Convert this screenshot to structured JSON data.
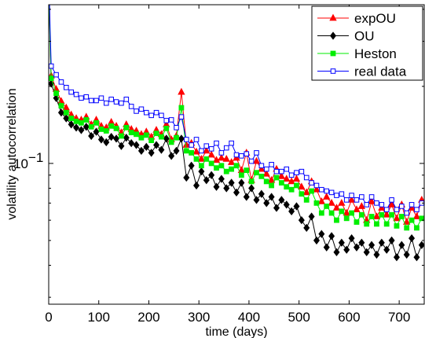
{
  "chart_data": {
    "type": "line",
    "title": "",
    "xlabel": "time (days)",
    "ylabel": "volatility autocorrelation",
    "xlim": [
      0,
      750
    ],
    "ylim_log10": [
      -1.55,
      -0.38
    ],
    "yscale": "log",
    "grid": false,
    "legend_position": "top-right",
    "x_ticks": [
      {
        "value": 0,
        "label": "0"
      },
      {
        "value": 100,
        "label": "100"
      },
      {
        "value": 200,
        "label": "200"
      },
      {
        "value": 300,
        "label": "300"
      },
      {
        "value": 400,
        "label": "400"
      },
      {
        "value": 500,
        "label": "500"
      },
      {
        "value": 600,
        "label": "600"
      },
      {
        "value": 700,
        "label": "700"
      }
    ],
    "y_ticks": [
      {
        "value": 0.1,
        "label_base": "10",
        "label_exp": "−1"
      }
    ],
    "x": [
      5,
      15,
      25,
      35,
      45,
      55,
      65,
      75,
      85,
      95,
      105,
      115,
      125,
      135,
      145,
      155,
      165,
      175,
      185,
      195,
      205,
      215,
      225,
      235,
      245,
      255,
      265,
      275,
      285,
      295,
      305,
      315,
      325,
      335,
      345,
      355,
      365,
      375,
      385,
      395,
      405,
      415,
      425,
      435,
      445,
      455,
      465,
      475,
      485,
      495,
      505,
      515,
      525,
      535,
      545,
      555,
      565,
      575,
      585,
      595,
      605,
      615,
      625,
      635,
      645,
      655,
      665,
      675,
      685,
      695,
      705,
      715,
      725,
      735,
      745
    ],
    "series": [
      {
        "name": "expOU",
        "color": "#ff0000",
        "marker": "triangle",
        "values": [
          0.22,
          0.195,
          0.175,
          0.165,
          0.155,
          0.15,
          0.148,
          0.152,
          0.142,
          0.148,
          0.14,
          0.138,
          0.145,
          0.14,
          0.132,
          0.142,
          0.136,
          0.134,
          0.13,
          0.133,
          0.127,
          0.135,
          0.13,
          0.142,
          0.124,
          0.128,
          0.19,
          0.118,
          0.12,
          0.111,
          0.104,
          0.112,
          0.108,
          0.103,
          0.105,
          0.104,
          0.101,
          0.105,
          0.094,
          0.11,
          0.086,
          0.102,
          0.095,
          0.091,
          0.086,
          0.095,
          0.089,
          0.087,
          0.085,
          0.087,
          0.081,
          0.077,
          0.085,
          0.079,
          0.071,
          0.074,
          0.07,
          0.067,
          0.07,
          0.064,
          0.072,
          0.066,
          0.068,
          0.06,
          0.071,
          0.062,
          0.067,
          0.063,
          0.069,
          0.061,
          0.069,
          0.059,
          0.067,
          0.062,
          0.072
        ]
      },
      {
        "name": "OU",
        "color": "#000000",
        "marker": "diamond",
        "values": [
          0.205,
          0.18,
          0.158,
          0.15,
          0.142,
          0.138,
          0.135,
          0.139,
          0.128,
          0.133,
          0.124,
          0.121,
          0.127,
          0.125,
          0.117,
          0.126,
          0.12,
          0.118,
          0.112,
          0.116,
          0.11,
          0.118,
          0.113,
          0.125,
          0.107,
          0.112,
          0.125,
          0.088,
          0.098,
          0.082,
          0.093,
          0.086,
          0.09,
          0.081,
          0.087,
          0.08,
          0.084,
          0.077,
          0.084,
          0.074,
          0.08,
          0.072,
          0.076,
          0.07,
          0.074,
          0.067,
          0.072,
          0.069,
          0.065,
          0.068,
          0.06,
          0.056,
          0.062,
          0.05,
          0.053,
          0.047,
          0.052,
          0.045,
          0.049,
          0.046,
          0.051,
          0.047,
          0.049,
          0.045,
          0.048,
          0.044,
          0.049,
          0.046,
          0.05,
          0.043,
          0.048,
          0.044,
          0.051,
          0.043,
          0.048
        ]
      },
      {
        "name": "Heston",
        "color": "#00ee00",
        "marker": "square",
        "values": [
          0.215,
          0.188,
          0.168,
          0.158,
          0.15,
          0.146,
          0.144,
          0.148,
          0.139,
          0.144,
          0.136,
          0.134,
          0.14,
          0.137,
          0.128,
          0.138,
          0.132,
          0.13,
          0.126,
          0.129,
          0.123,
          0.131,
          0.127,
          0.137,
          0.121,
          0.126,
          0.165,
          0.112,
          0.11,
          0.104,
          0.098,
          0.104,
          0.1,
          0.096,
          0.098,
          0.093,
          0.095,
          0.098,
          0.09,
          0.094,
          0.085,
          0.092,
          0.089,
          0.085,
          0.082,
          0.088,
          0.084,
          0.081,
          0.079,
          0.082,
          0.076,
          0.072,
          0.078,
          0.07,
          0.064,
          0.068,
          0.064,
          0.06,
          0.065,
          0.061,
          0.064,
          0.059,
          0.063,
          0.058,
          0.062,
          0.058,
          0.063,
          0.058,
          0.063,
          0.057,
          0.062,
          0.056,
          0.06,
          0.056,
          0.061
        ]
      },
      {
        "name": "real data",
        "color": "#0000ff",
        "marker": "open-square",
        "values": [
          0.24,
          0.222,
          0.208,
          0.198,
          0.19,
          0.186,
          0.18,
          0.182,
          0.176,
          0.176,
          0.18,
          0.172,
          0.178,
          0.174,
          0.172,
          0.178,
          0.167,
          0.16,
          0.163,
          0.158,
          0.154,
          0.158,
          0.154,
          0.147,
          0.148,
          0.138,
          0.152,
          0.124,
          0.118,
          0.124,
          0.112,
          0.117,
          0.114,
          0.12,
          0.11,
          0.115,
          0.12,
          0.108,
          0.107,
          0.109,
          0.102,
          0.11,
          0.098,
          0.095,
          0.099,
          0.093,
          0.093,
          0.095,
          0.09,
          0.092,
          0.093,
          0.088,
          0.084,
          0.082,
          0.079,
          0.078,
          0.077,
          0.075,
          0.076,
          0.072,
          0.075,
          0.072,
          0.074,
          0.069,
          0.074,
          0.07,
          0.069,
          0.066,
          0.072,
          0.066,
          0.068,
          0.064,
          0.069,
          0.066,
          0.07
        ]
      }
    ]
  }
}
